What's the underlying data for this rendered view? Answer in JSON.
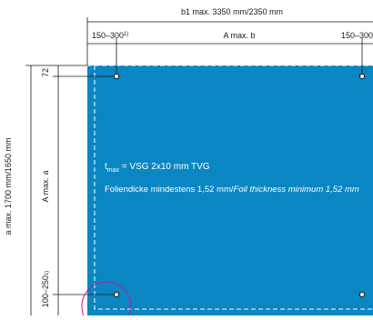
{
  "top_dimension": {
    "overall_label": "b1 max. 3350 mm/2350 mm",
    "left_offset": "150–300",
    "left_offset_note": "1)",
    "middle_label": "A max. b",
    "right_offset": "150–300"
  },
  "left_dimension": {
    "overall_label": "a max. 1700 mm/1650 mm",
    "middle_label": "A max. a",
    "top_offset": "72",
    "bottom_offset": "100–250",
    "bottom_offset_note": "1)"
  },
  "panel": {
    "color": "#0a86c2",
    "thickness_prefix": "t",
    "thickness_sub": "max",
    "thickness_value": " = VSG 2x10 mm TVG",
    "foil_de": "Foliendicke mindestens 1,52 mm/",
    "foil_en": "Foil thickness minimum 1,52 mm"
  },
  "highlight_color": "#c0189a",
  "icons": [
    "mounting-hole-icon",
    "mounting-hole-icon",
    "mounting-hole-icon",
    "mounting-hole-icon"
  ]
}
